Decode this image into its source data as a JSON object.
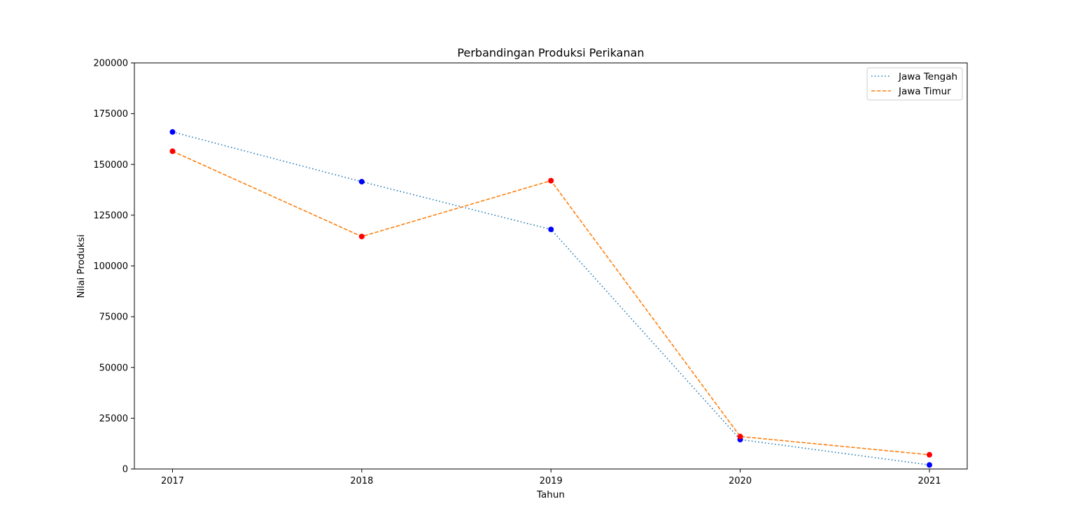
{
  "chart_data": {
    "type": "line",
    "title": "Perbandingan Produksi Perikanan",
    "xlabel": "Tahun",
    "ylabel": "Nilai Produksi",
    "categories": [
      "2017",
      "2018",
      "2019",
      "2020",
      "2021"
    ],
    "ylim": [
      0,
      200000
    ],
    "yticks": [
      0,
      25000,
      50000,
      75000,
      100000,
      125000,
      150000,
      175000,
      200000
    ],
    "ytick_labels": [
      "0",
      "25000",
      "50000",
      "75000",
      "100000",
      "125000",
      "150000",
      "175000",
      "200000"
    ],
    "grid": false,
    "legend_position": "top-right",
    "series": [
      {
        "name": "Jawa Tengah",
        "values": [
          166000,
          141500,
          118000,
          14500,
          2000
        ],
        "line_color": "#1f77b4",
        "marker_color": "#0000ff",
        "line_style": "dotted"
      },
      {
        "name": "Jawa Timur",
        "values": [
          156500,
          114500,
          142000,
          16000,
          7000
        ],
        "line_color": "#ff7f0e",
        "marker_color": "#ff0000",
        "line_style": "dashed"
      }
    ]
  }
}
